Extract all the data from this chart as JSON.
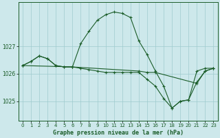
{
  "xlabel": "Graphe pression niveau de la mer (hPa)",
  "bg_color": "#cde8eb",
  "grid_color": "#9ecbce",
  "line_color": "#1a5c28",
  "xlim": [
    -0.5,
    23.5
  ],
  "ylim": [
    1024.3,
    1028.6
  ],
  "yticks": [
    1025,
    1026,
    1027
  ],
  "ytick_labels": [
    "1025",
    "1026",
    "1027"
  ],
  "xticks": [
    0,
    1,
    2,
    3,
    4,
    5,
    6,
    7,
    8,
    9,
    10,
    11,
    12,
    13,
    14,
    15,
    16,
    17,
    18,
    19,
    20,
    21,
    22,
    23
  ],
  "series1_x": [
    0,
    1,
    2,
    3,
    4,
    5,
    6,
    7,
    8,
    9,
    10,
    11,
    12,
    13,
    14,
    15,
    16,
    17,
    18,
    19,
    20,
    21,
    22,
    23
  ],
  "series1_y": [
    1026.3,
    1026.45,
    1026.65,
    1026.55,
    1026.3,
    1026.25,
    1026.25,
    1027.1,
    1027.55,
    1027.95,
    1028.15,
    1028.25,
    1028.2,
    1028.05,
    1027.2,
    1026.7,
    1026.1,
    1025.55,
    1024.75,
    1025.0,
    1025.05,
    1026.1,
    1026.2,
    1026.2
  ],
  "series2_x": [
    0,
    1,
    2,
    3,
    4,
    5,
    6,
    14,
    15,
    16,
    21,
    22,
    23
  ],
  "series2_y": [
    1026.3,
    1026.45,
    1026.65,
    1026.55,
    1026.3,
    1026.25,
    1026.25,
    1026.1,
    1026.05,
    1026.05,
    1025.65,
    1026.1,
    1026.2
  ],
  "series3_x": [
    0,
    6,
    7,
    8,
    9,
    10,
    11,
    12,
    13,
    14,
    15,
    16,
    17,
    18,
    19,
    20,
    21,
    22,
    23
  ],
  "series3_y": [
    1026.3,
    1026.25,
    1026.2,
    1026.15,
    1026.1,
    1026.05,
    1026.05,
    1026.05,
    1026.05,
    1026.05,
    1025.8,
    1025.55,
    1025.1,
    1024.75,
    1025.0,
    1025.05,
    1025.7,
    1026.1,
    1026.2
  ]
}
